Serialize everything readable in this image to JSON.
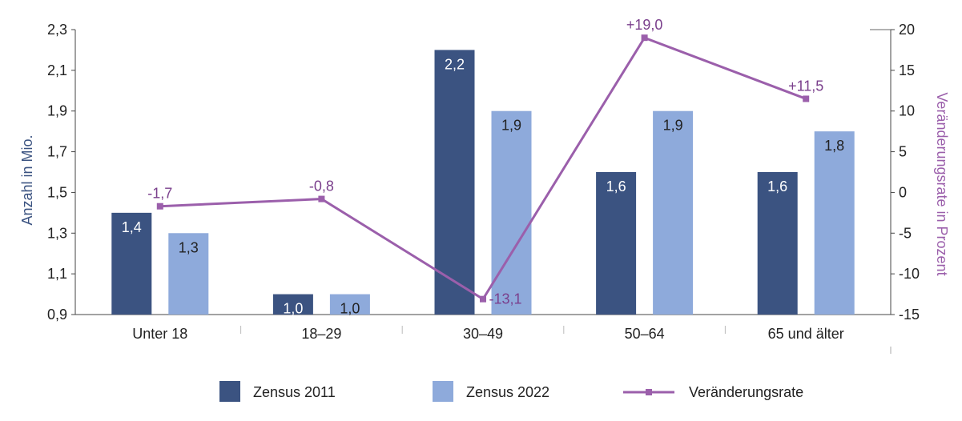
{
  "chart_data": {
    "type": "bar",
    "categories": [
      "Unter 18",
      "18–29",
      "30–49",
      "50–64",
      "65 und älter"
    ],
    "series": [
      {
        "name": "Zensus 2011",
        "type": "bar",
        "axis": "left",
        "values": [
          1.4,
          1.0,
          2.2,
          1.6,
          1.6
        ],
        "labels": [
          "1,4",
          "1,0",
          "2,2",
          "1,6",
          "1,6"
        ],
        "color": "#3b5381"
      },
      {
        "name": "Zensus 2022",
        "type": "bar",
        "axis": "left",
        "values": [
          1.3,
          1.0,
          1.9,
          1.9,
          1.8
        ],
        "labels": [
          "1,3",
          "1,0",
          "1,9",
          "1,9",
          "1,8"
        ],
        "color": "#8eaadb"
      },
      {
        "name": "Veränderungsrate",
        "type": "line",
        "axis": "right",
        "values": [
          -1.7,
          -0.8,
          -13.1,
          19.0,
          11.5
        ],
        "labels": [
          "-1,7",
          "-0,8",
          "-13,1",
          "+19,0",
          "+11,5"
        ],
        "color": "#9b5fab"
      }
    ],
    "ylabel": "Anzahl  in Mio.",
    "ylim": [
      0.9,
      2.3
    ],
    "yticks": [
      "0,9",
      "1,1",
      "1,3",
      "1,5",
      "1,7",
      "1,9",
      "2,1",
      "2,3"
    ],
    "y2label": "Veränderungsrate in Prozent",
    "y2lim": [
      -15,
      20
    ],
    "y2ticks": [
      "-15",
      "-10",
      "-5",
      "0",
      "5",
      "10",
      "15",
      "20"
    ],
    "grid": false,
    "legend": "bottom"
  }
}
